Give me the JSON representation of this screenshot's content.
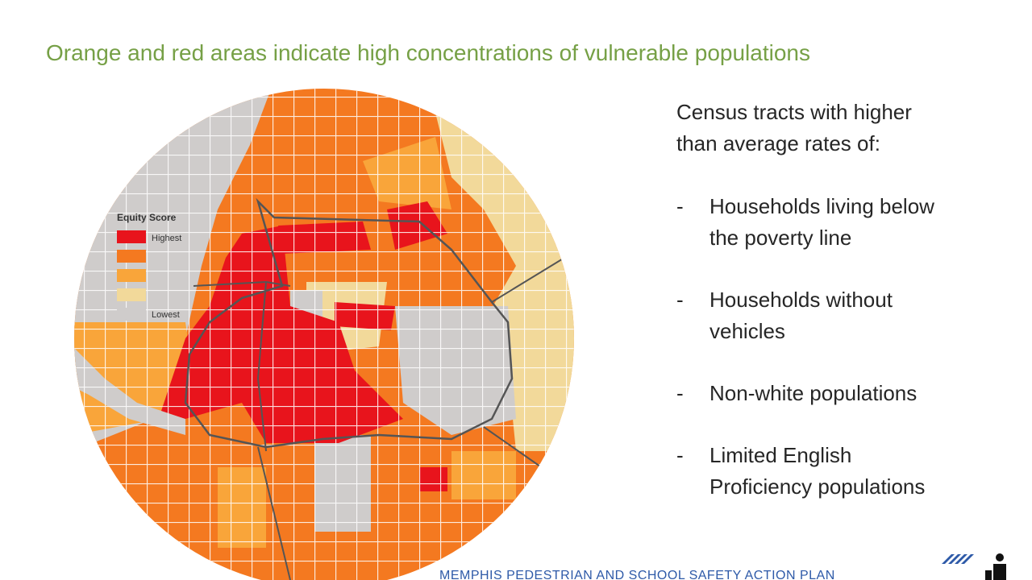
{
  "subtitle": "Orange and red areas indicate high concentrations of vulnerable populations",
  "legend": {
    "title": "Equity Score",
    "high": "Highest",
    "low": "Lowest"
  },
  "panel": {
    "intro": [
      "Census tracts with higher",
      "than average rates of:"
    ],
    "bullet": "-",
    "items": [
      [
        "Households living below",
        "the poverty line"
      ],
      [
        "Households without",
        "vehicles"
      ],
      [
        "Non-white populations"
      ],
      [
        "Limited English",
        "Proficiency populations"
      ]
    ]
  },
  "footer": "MEMPHIS PEDESTRIAN AND SCHOOL SAFETY ACTION PLAN"
}
